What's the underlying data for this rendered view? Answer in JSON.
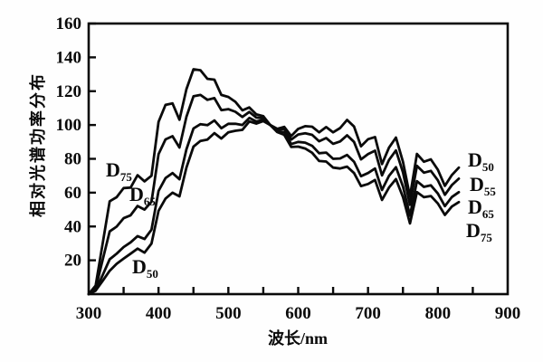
{
  "figure": {
    "background": "#fefefe",
    "ink_color": "#0a0a0a",
    "description_visible_text_only": ""
  },
  "chart_data": {
    "type": "line",
    "title": "",
    "xlabel": "波长/nm",
    "ylabel": "相对光谱功率分布",
    "xlim": [
      300,
      900
    ],
    "ylim": [
      0,
      160
    ],
    "x_ticks": [
      300,
      400,
      500,
      600,
      700,
      800,
      900
    ],
    "x_minor_ticks": [
      350,
      400,
      450,
      500,
      550,
      600,
      650,
      700,
      750,
      800,
      850
    ],
    "y_ticks": [
      20,
      40,
      60,
      80,
      100,
      120,
      140,
      160
    ],
    "grid": false,
    "legend_position": "inline-curve-labels",
    "x_nm": [
      300,
      310,
      320,
      330,
      340,
      350,
      360,
      370,
      380,
      390,
      400,
      410,
      420,
      430,
      440,
      450,
      460,
      470,
      480,
      490,
      500,
      510,
      520,
      530,
      540,
      550,
      560,
      570,
      580,
      590,
      600,
      610,
      620,
      630,
      640,
      650,
      660,
      670,
      680,
      690,
      700,
      710,
      720,
      730,
      740,
      750,
      760,
      770,
      780,
      790,
      800,
      810,
      820,
      830
    ],
    "series": [
      {
        "name": "D75",
        "values": [
          0.0,
          5.1,
          29.8,
          54.9,
          57.3,
          62.7,
          63.0,
          70.3,
          66.7,
          70.0,
          101.9,
          111.9,
          112.8,
          103.1,
          121.2,
          133.0,
          132.4,
          127.3,
          126.8,
          117.8,
          116.6,
          113.7,
          108.7,
          110.4,
          106.3,
          105.2,
          100.0,
          95.8,
          94.2,
          87.0,
          87.2,
          86.1,
          83.6,
          78.7,
          78.4,
          74.8,
          74.3,
          75.4,
          71.6,
          63.9,
          65.1,
          67.5,
          55.7,
          63.0,
          68.0,
          57.3,
          41.8,
          60.3,
          57.3,
          58.0,
          53.6,
          46.8,
          51.8,
          54.4
        ]
      },
      {
        "name": "D65",
        "values": [
          0.0,
          3.3,
          20.2,
          37.1,
          39.9,
          44.9,
          46.6,
          52.1,
          50.0,
          54.6,
          82.8,
          91.5,
          93.4,
          86.7,
          104.9,
          117.0,
          117.8,
          114.9,
          115.9,
          108.8,
          109.4,
          107.8,
          104.8,
          107.7,
          104.4,
          104.0,
          100.0,
          96.3,
          95.8,
          88.7,
          90.0,
          89.6,
          87.7,
          83.3,
          83.7,
          80.0,
          80.2,
          82.3,
          78.3,
          69.7,
          71.6,
          74.3,
          61.6,
          69.9,
          75.1,
          63.6,
          46.4,
          66.8,
          63.4,
          64.3,
          59.5,
          52.0,
          57.4,
          60.3
        ]
      },
      {
        "name": "D55",
        "values": [
          0.0,
          2.1,
          11.2,
          20.6,
          23.9,
          27.8,
          30.6,
          34.3,
          32.6,
          38.1,
          61.0,
          68.6,
          71.6,
          67.9,
          85.6,
          98.0,
          100.5,
          99.9,
          102.7,
          98.1,
          100.7,
          100.7,
          100.0,
          104.2,
          102.1,
          103.0,
          100.0,
          97.2,
          97.7,
          91.4,
          94.4,
          95.1,
          94.2,
          90.4,
          92.3,
          88.9,
          90.3,
          93.9,
          90.0,
          79.7,
          82.8,
          84.8,
          70.2,
          79.3,
          85.0,
          71.9,
          52.8,
          75.9,
          71.8,
          72.9,
          67.3,
          58.7,
          64.5,
          68.3
        ]
      },
      {
        "name": "D50",
        "values": [
          0.0,
          2.1,
          7.8,
          13.8,
          17.9,
          21.0,
          23.9,
          26.9,
          24.5,
          29.9,
          49.3,
          56.5,
          60.0,
          57.8,
          74.8,
          87.2,
          90.6,
          91.4,
          95.2,
          92.0,
          95.7,
          96.6,
          97.1,
          102.1,
          100.8,
          102.3,
          100.0,
          97.7,
          98.9,
          93.5,
          97.7,
          99.3,
          99.0,
          95.7,
          98.8,
          95.7,
          98.2,
          103.0,
          99.1,
          87.4,
          91.6,
          92.9,
          76.9,
          86.6,
          92.6,
          78.2,
          57.7,
          82.9,
          78.3,
          79.7,
          73.6,
          64.0,
          70.4,
          74.8
        ]
      }
    ],
    "left_labels": [
      {
        "base": "D",
        "sub": "75"
      },
      {
        "base": "D",
        "sub": "65"
      },
      {
        "base": "D",
        "sub": "50"
      }
    ],
    "right_labels": [
      {
        "base": "D",
        "sub": "50"
      },
      {
        "base": "D",
        "sub": "55"
      },
      {
        "base": "D",
        "sub": "65"
      },
      {
        "base": "D",
        "sub": "75"
      }
    ]
  }
}
